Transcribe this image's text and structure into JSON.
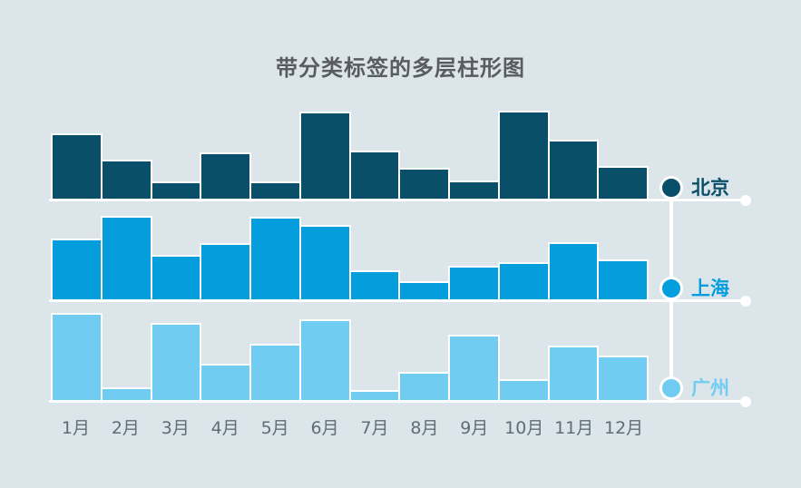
{
  "chart_data": {
    "type": "bar",
    "title": "带分类标签的多层柱形图",
    "layout": "three stacked category rows (small multiples) sharing one x-axis, legend markers on the right of each row, no numeric axis, no grid",
    "categories": [
      "1月",
      "2月",
      "3月",
      "4月",
      "5月",
      "6月",
      "7月",
      "8月",
      "9月",
      "10月",
      "11月",
      "12月"
    ],
    "series": [
      {
        "name": "北京",
        "color": "#094f6a",
        "values": [
          72,
          43,
          19,
          51,
          19,
          96,
          53,
          34,
          20,
          97,
          65,
          36
        ]
      },
      {
        "name": "上海",
        "color": "#049edd",
        "values": [
          67,
          92,
          49,
          62,
          91,
          82,
          32,
          20,
          37,
          41,
          63,
          44
        ]
      },
      {
        "name": "广州",
        "color": "#70cdf1",
        "values": [
          96,
          14,
          85,
          40,
          62,
          89,
          11,
          31,
          72,
          23,
          60,
          49
        ]
      }
    ],
    "ylim": [
      0,
      100
    ],
    "legend_position": "right"
  },
  "colors": {
    "background": "#dce5e9",
    "title_text": "#595c5e",
    "axis_text": "#5e6e74",
    "baseline": "#ffffff"
  }
}
